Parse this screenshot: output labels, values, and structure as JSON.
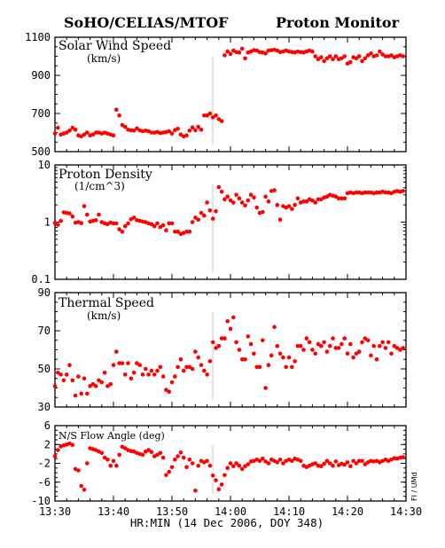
{
  "header": {
    "left": "SoHO/CELIAS/MTOF",
    "right": "Proton Monitor"
  },
  "x_axis": {
    "tick_labels": [
      "13:30",
      "13:40",
      "13:50",
      "14:00",
      "14:10",
      "14:20",
      "14:30"
    ],
    "label": "HR:MIN (14 Dec 2006, DOY 348)"
  },
  "credit": "FI / UMd",
  "chart_data": [
    {
      "type": "scatter",
      "title": "Solar Wind Speed",
      "unit": "(km/s)",
      "ylim": [
        500,
        1100
      ],
      "y_scale": "linear",
      "y_ticks": [
        500,
        700,
        900,
        1100
      ],
      "xlim": [
        0,
        60
      ],
      "x": [
        0.0,
        0.5,
        1.0,
        1.5,
        2.0,
        2.5,
        3.0,
        3.5,
        4.0,
        4.5,
        5.0,
        5.5,
        6.0,
        6.5,
        7.0,
        7.5,
        8.0,
        8.5,
        9.0,
        9.5,
        10.0,
        10.5,
        11.0,
        11.5,
        12.0,
        12.5,
        13.0,
        13.5,
        14.0,
        14.5,
        15.0,
        15.5,
        16.0,
        16.5,
        17.0,
        17.5,
        18.0,
        18.5,
        19.0,
        19.5,
        20.0,
        20.5,
        21.0,
        21.5,
        22.0,
        22.5,
        23.0,
        23.5,
        24.0,
        24.5,
        25.0,
        25.5,
        26.0,
        26.5,
        27.0,
        27.5,
        28.0,
        28.5,
        29.0,
        29.5,
        30.0,
        30.5,
        31.0,
        31.5,
        32.0,
        32.5,
        33.0,
        33.5,
        34.0,
        34.5,
        35.0,
        35.5,
        36.0,
        36.5,
        37.0,
        37.5,
        38.0,
        38.5,
        39.0,
        39.5,
        40.0,
        40.5,
        41.0,
        41.5,
        42.0,
        42.5,
        43.0,
        43.5,
        44.0,
        44.5,
        45.0,
        45.5,
        46.0,
        46.5,
        47.0,
        47.5,
        48.0,
        48.5,
        49.0,
        49.5,
        50.0,
        50.5,
        51.0,
        51.5,
        52.0,
        52.5,
        53.0,
        53.5,
        54.0,
        54.5,
        55.0,
        55.5,
        56.0,
        56.5,
        57.0,
        57.5,
        58.0,
        58.5,
        59.0,
        59.5
      ],
      "values": [
        595,
        625,
        590,
        595,
        600,
        610,
        625,
        615,
        585,
        580,
        590,
        600,
        585,
        590,
        600,
        600,
        595,
        600,
        595,
        590,
        585,
        720,
        690,
        640,
        630,
        615,
        612,
        610,
        622,
        612,
        607,
        610,
        607,
        600,
        600,
        603,
        597,
        600,
        603,
        607,
        595,
        613,
        620,
        590,
        580,
        585,
        610,
        627,
        612,
        630,
        615,
        690,
        690,
        700,
        680,
        690,
        670,
        660,
        1005,
        1025,
        1012,
        1030,
        1022,
        1020,
        1040,
        990,
        1020,
        1025,
        1032,
        1030,
        1022,
        1020,
        1015,
        1030,
        1032,
        1035,
        1030,
        1022,
        1025,
        1030,
        1025,
        1022,
        1020,
        1025,
        1022,
        1020,
        1025,
        1030,
        1025,
        1000,
        985,
        995,
        975,
        990,
        1000,
        985,
        1000,
        985,
        990,
        1000,
        962,
        970,
        995,
        990,
        1000,
        975,
        990,
        1005,
        1015,
        1000,
        1005,
        1025,
        1010,
        1000,
        1000,
        1005,
        995,
        1000,
        1005,
        1000
      ]
    },
    {
      "type": "scatter",
      "title": "Proton Density",
      "unit": "(1/cm^3)",
      "ylim": [
        0.1,
        10
      ],
      "y_scale": "log",
      "y_ticks": [
        0.1,
        1,
        10
      ],
      "y_tick_labels": [
        "0.1",
        "1",
        "10"
      ],
      "xlim": [
        0,
        60
      ],
      "x": [
        0.0,
        0.5,
        1.0,
        1.5,
        2.0,
        2.5,
        3.0,
        3.5,
        4.0,
        4.5,
        5.0,
        5.5,
        6.0,
        6.5,
        7.0,
        7.5,
        8.0,
        8.5,
        9.0,
        9.5,
        10.0,
        10.5,
        11.0,
        11.5,
        12.0,
        12.5,
        13.0,
        13.5,
        14.0,
        14.5,
        15.0,
        15.5,
        16.0,
        16.5,
        17.0,
        17.5,
        18.0,
        18.5,
        19.0,
        19.5,
        20.0,
        20.5,
        21.0,
        21.5,
        22.0,
        22.5,
        23.0,
        23.5,
        24.0,
        24.5,
        25.0,
        25.5,
        26.0,
        26.5,
        27.0,
        27.5,
        28.0,
        28.5,
        29.0,
        29.5,
        30.0,
        30.5,
        31.0,
        31.5,
        32.0,
        32.5,
        33.0,
        33.5,
        34.0,
        34.5,
        35.0,
        35.5,
        36.0,
        36.5,
        37.0,
        37.5,
        38.0,
        38.5,
        39.0,
        39.5,
        40.0,
        40.5,
        41.0,
        41.5,
        42.0,
        42.5,
        43.0,
        43.5,
        44.0,
        44.5,
        45.0,
        45.5,
        46.0,
        46.5,
        47.0,
        47.5,
        48.0,
        48.5,
        49.0,
        49.5,
        50.0,
        50.5,
        51.0,
        51.5,
        52.0,
        52.5,
        53.0,
        53.5,
        54.0,
        54.5,
        55.0,
        55.5,
        56.0,
        56.5,
        57.0,
        57.5,
        58.0,
        58.5,
        59.0,
        59.5
      ],
      "values": [
        0.97,
        0.9,
        1.05,
        1.48,
        1.45,
        1.42,
        1.25,
        0.98,
        1.0,
        0.96,
        1.9,
        1.35,
        1.02,
        1.05,
        1.08,
        1.35,
        1.0,
        0.95,
        0.92,
        0.98,
        0.95,
        0.95,
        0.75,
        0.68,
        0.85,
        0.95,
        1.12,
        1.2,
        1.08,
        1.05,
        1.02,
        1.0,
        0.95,
        0.92,
        0.85,
        0.95,
        0.82,
        0.88,
        0.72,
        0.95,
        0.95,
        0.68,
        0.68,
        0.62,
        0.65,
        0.68,
        0.68,
        1.0,
        1.2,
        1.1,
        1.45,
        1.3,
        2.2,
        1.6,
        1.15,
        1.55,
        4.1,
        3.4,
        2.5,
        2.8,
        2.4,
        2.2,
        3.0,
        2.6,
        2.2,
        1.95,
        2.4,
        3.0,
        2.7,
        1.8,
        1.45,
        1.5,
        2.8,
        2.3,
        3.5,
        3.6,
        2.0,
        1.1,
        1.9,
        1.8,
        1.9,
        1.7,
        2.0,
        2.6,
        2.2,
        2.3,
        2.3,
        2.5,
        2.4,
        2.2,
        2.5,
        2.5,
        2.7,
        2.8,
        3.0,
        2.9,
        2.8,
        2.6,
        2.6,
        2.6,
        3.2,
        3.3,
        3.2,
        3.3,
        3.3,
        3.2,
        3.3,
        3.3,
        3.3,
        3.2,
        3.3,
        3.3,
        3.4,
        3.3,
        3.3,
        3.2,
        3.4,
        3.5,
        3.4,
        3.5
      ]
    },
    {
      "type": "scatter",
      "title": "Thermal Speed",
      "unit": "(km/s)",
      "ylim": [
        30,
        90
      ],
      "y_scale": "linear",
      "y_ticks": [
        30,
        50,
        70,
        90
      ],
      "xlim": [
        0,
        60
      ],
      "x": [
        0.0,
        0.5,
        1.0,
        1.5,
        2.0,
        2.5,
        3.0,
        3.5,
        4.0,
        4.5,
        5.0,
        5.5,
        6.0,
        6.5,
        7.0,
        7.5,
        8.0,
        8.5,
        9.0,
        9.5,
        10.0,
        10.5,
        11.0,
        11.5,
        12.0,
        12.5,
        13.0,
        13.5,
        14.0,
        14.5,
        15.0,
        15.5,
        16.0,
        16.5,
        17.0,
        17.5,
        18.0,
        18.5,
        19.0,
        19.5,
        20.0,
        20.5,
        21.0,
        21.5,
        22.0,
        22.5,
        23.0,
        23.5,
        24.0,
        24.5,
        25.0,
        25.5,
        26.0,
        26.5,
        27.0,
        27.5,
        28.0,
        28.5,
        29.0,
        29.5,
        30.0,
        30.5,
        31.0,
        31.5,
        32.0,
        32.5,
        33.0,
        33.5,
        34.0,
        34.5,
        35.0,
        35.5,
        36.0,
        36.5,
        37.0,
        37.5,
        38.0,
        38.5,
        39.0,
        39.5,
        40.0,
        40.5,
        41.0,
        41.5,
        42.0,
        42.5,
        43.0,
        43.5,
        44.0,
        44.5,
        45.0,
        45.5,
        46.0,
        46.5,
        47.0,
        47.5,
        48.0,
        48.5,
        49.0,
        49.5,
        50.0,
        50.5,
        51.0,
        51.5,
        52.0,
        52.5,
        53.0,
        53.5,
        54.0,
        54.5,
        55.0,
        55.5,
        56.0,
        56.5,
        57.0,
        57.5,
        58.0,
        58.5,
        59.0,
        59.5
      ],
      "values": [
        41,
        48,
        47,
        44,
        47,
        52,
        44,
        36,
        46,
        37,
        45,
        37,
        41,
        42,
        41,
        44,
        43,
        48,
        41,
        42,
        52,
        59,
        53,
        53,
        47,
        53,
        45,
        48,
        53,
        52,
        47,
        50,
        47,
        49,
        47,
        49,
        51,
        46,
        39,
        38,
        43,
        46,
        51,
        55,
        49,
        51,
        51,
        50,
        59,
        56,
        52,
        49,
        47,
        54,
        64,
        61,
        62,
        66,
        66,
        75,
        71,
        77,
        64,
        60,
        55,
        55,
        67,
        63,
        58,
        51,
        51,
        65,
        40,
        52,
        57,
        72,
        62,
        58,
        56,
        51,
        56,
        51,
        54,
        62,
        62,
        60,
        66,
        64,
        60,
        58,
        63,
        62,
        64,
        59,
        62,
        66,
        61,
        61,
        63,
        66,
        58,
        63,
        56,
        58,
        59,
        64,
        66,
        65,
        57,
        62,
        55,
        62,
        64,
        61,
        64,
        58,
        62,
        61,
        60,
        61
      ]
    },
    {
      "type": "scatter",
      "title": "N/S Flow Angle (deg)",
      "unit": "",
      "ylim": [
        -10,
        6
      ],
      "y_scale": "linear",
      "y_ticks": [
        -10,
        -6,
        -2,
        2,
        6
      ],
      "xlim": [
        0,
        60
      ],
      "x": [
        0.0,
        0.5,
        1.0,
        1.5,
        2.0,
        2.5,
        3.0,
        3.5,
        4.0,
        4.5,
        5.0,
        5.5,
        6.0,
        6.5,
        7.0,
        7.5,
        8.0,
        8.5,
        9.0,
        9.5,
        10.0,
        10.5,
        11.0,
        11.5,
        12.0,
        12.5,
        13.0,
        13.5,
        14.0,
        14.5,
        15.0,
        15.5,
        16.0,
        16.5,
        17.0,
        17.5,
        18.0,
        18.5,
        19.0,
        19.5,
        20.0,
        20.5,
        21.0,
        21.5,
        22.0,
        22.5,
        23.0,
        23.5,
        24.0,
        24.5,
        25.0,
        25.5,
        26.0,
        26.5,
        27.0,
        27.5,
        28.0,
        28.5,
        29.0,
        29.5,
        30.0,
        30.5,
        31.0,
        31.5,
        32.0,
        32.5,
        33.0,
        33.5,
        34.0,
        34.5,
        35.0,
        35.5,
        36.0,
        36.5,
        37.0,
        37.5,
        38.0,
        38.5,
        39.0,
        39.5,
        40.0,
        40.5,
        41.0,
        41.5,
        42.0,
        42.5,
        43.0,
        43.5,
        44.0,
        44.5,
        45.0,
        45.5,
        46.0,
        46.5,
        47.0,
        47.5,
        48.0,
        48.5,
        49.0,
        49.5,
        50.0,
        50.5,
        51.0,
        51.5,
        52.0,
        52.5,
        53.0,
        53.5,
        54.0,
        54.5,
        55.0,
        55.5,
        56.0,
        56.5,
        57.0,
        57.5,
        58.0,
        58.5,
        59.0,
        59.5
      ],
      "values": [
        -0.5,
        0.8,
        1.6,
        1.8,
        2.0,
        2.2,
        1.9,
        -3.2,
        -3.5,
        -6.8,
        -7.6,
        -2.0,
        1.2,
        1.0,
        0.8,
        0.5,
        0.2,
        -0.8,
        -1.2,
        -2.5,
        -1.5,
        -2.5,
        -0.2,
        1.5,
        1.2,
        0.8,
        0.6,
        0.5,
        0.2,
        0.0,
        -0.2,
        0.5,
        0.8,
        0.4,
        -0.5,
        -0.2,
        0.2,
        -0.8,
        -4.5,
        -3.8,
        -2.8,
        -1.2,
        -0.5,
        0.3,
        -0.8,
        -2.8,
        -1.2,
        -2.0,
        -7.8,
        -2.5,
        -1.5,
        -1.8,
        -1.5,
        -2.5,
        -4.6,
        -5.6,
        -7.5,
        -6.5,
        -4.5,
        -3.0,
        -2.0,
        -2.6,
        -2.0,
        -2.5,
        -3.2,
        -2.6,
        -2.2,
        -1.6,
        -1.5,
        -1.2,
        -1.5,
        -1.0,
        -1.6,
        -2.0,
        -1.2,
        -1.5,
        -1.8,
        -1.2,
        -2.0,
        -1.5,
        -1.2,
        -1.5,
        -1.0,
        -1.2,
        -1.5,
        -2.5,
        -2.8,
        -2.5,
        -2.2,
        -2.0,
        -2.5,
        -2.6,
        -2.1,
        -1.5,
        -2.0,
        -2.5,
        -1.6,
        -2.4,
        -2.1,
        -2.3,
        -1.8,
        -2.6,
        -1.5,
        -2.0,
        -1.5,
        -1.5,
        -2.2,
        -1.8,
        -1.5,
        -1.6,
        -1.5,
        -1.8,
        -1.5,
        -1.2,
        -1.5,
        -1.2,
        -0.9,
        -1.0,
        -0.8,
        -0.7
      ]
    }
  ]
}
